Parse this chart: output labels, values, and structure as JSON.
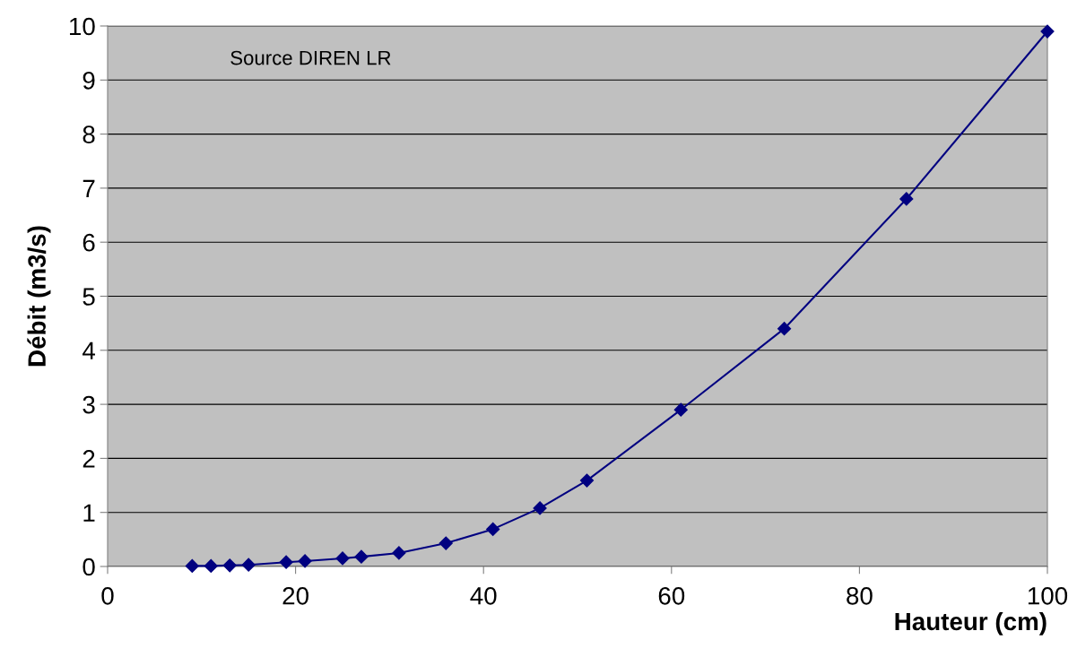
{
  "chart_data": {
    "type": "line",
    "xlabel": "Hauteur (cm)",
    "ylabel": "Débit (m3/s)",
    "annotations": [
      "Source DIREN LR"
    ],
    "x": [
      9,
      11,
      13,
      15,
      19,
      21,
      25,
      27,
      31,
      36,
      41,
      46,
      51,
      61,
      72,
      85,
      100
    ],
    "series": [
      {
        "color": "#000080",
        "values": [
          0.01,
          0.01,
          0.02,
          0.03,
          0.08,
          0.1,
          0.15,
          0.18,
          0.25,
          0.43,
          0.69,
          1.08,
          1.59,
          2.9,
          4.4,
          6.8,
          9.9
        ]
      }
    ],
    "xlim": [
      0,
      100
    ],
    "xticks": [
      0,
      20,
      40,
      60,
      80,
      100
    ],
    "ylim": [
      0,
      10
    ],
    "yticks": [
      0,
      1,
      2,
      3,
      4,
      5,
      6,
      7,
      8,
      9,
      10
    ],
    "grid": "y",
    "marker": "diamond",
    "line_style": "solid",
    "legend": false
  }
}
